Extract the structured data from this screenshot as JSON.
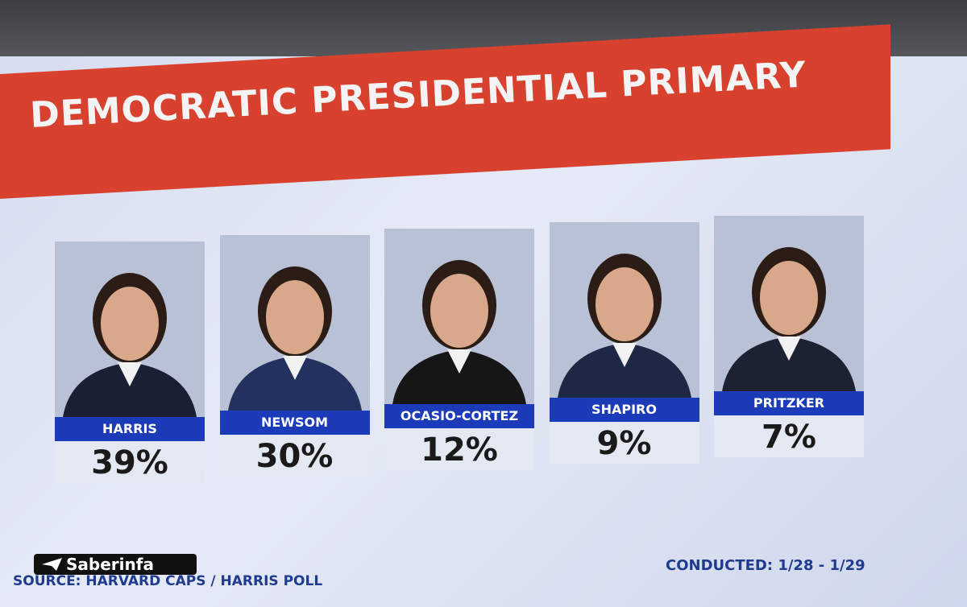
{
  "header": {
    "title": "DEMOCRATIC PRESIDENTIAL PRIMARY"
  },
  "candidates": [
    {
      "name": "HARRIS",
      "percent": "39%"
    },
    {
      "name": "NEWSOM",
      "percent": "30%"
    },
    {
      "name": "OCASIO-CORTEZ",
      "percent": "12%"
    },
    {
      "name": "SHAPIRO",
      "percent": "9%"
    },
    {
      "name": "PRITZKER",
      "percent": "7%"
    }
  ],
  "footer": {
    "source": "SOURCE: HARVARD CAPS / HARRIS POLL",
    "conducted": "CONDUCTED: 1/28 - 1/29"
  },
  "watermark": "Saberinfa"
}
